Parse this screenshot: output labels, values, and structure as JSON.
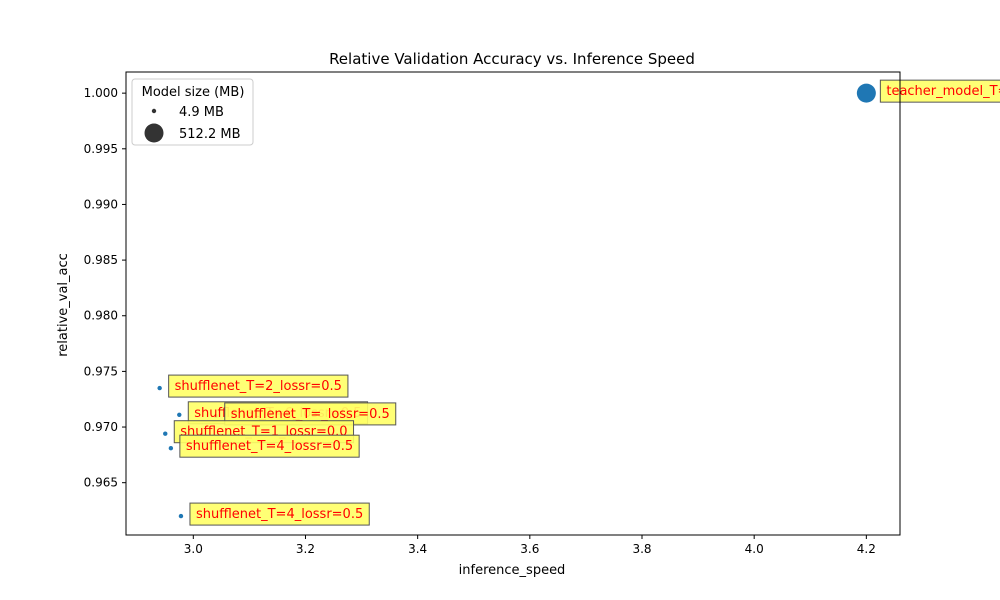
{
  "chart_data": {
    "type": "scatter",
    "title": "Relative Validation Accuracy vs. Inference Speed",
    "xlabel": "inference_speed",
    "ylabel": "relative_val_acc",
    "xlim": [
      2.88,
      4.26
    ],
    "ylim": [
      0.9603,
      1.0019
    ],
    "grid": false,
    "x_ticks": [
      "3.0",
      "3.2",
      "3.4",
      "3.6",
      "3.8",
      "4.0",
      "4.2"
    ],
    "y_ticks": [
      "0.965",
      "0.970",
      "0.975",
      "0.980",
      "0.985",
      "0.990",
      "0.995",
      "1.000"
    ],
    "point_color": "#1f77b4",
    "label_color": "#ff0000",
    "label_box_color": "#ffff66",
    "legend": {
      "title": "Model size (MB)",
      "placement": "upper-left",
      "entries": [
        {
          "label": "4.9 MB",
          "size_mb": 4.9
        },
        {
          "label": "512.2 MB",
          "size_mb": 512.2
        }
      ]
    },
    "points": [
      {
        "label": "teacher_model_T=",
        "x": 4.2,
        "y": 1.0,
        "size_mb": 512.2
      },
      {
        "label": "shufflenet_T=2_lossr=0.5",
        "x": 2.94,
        "y": 0.9735,
        "size_mb": 4.9
      },
      {
        "label": "shufflenet_T=6_lossr=0.5",
        "x": 2.975,
        "y": 0.9711,
        "size_mb": 4.9
      },
      {
        "label": "shufflenet_T=_lossr=0.5",
        "x": 3.04,
        "y": 0.971,
        "size_mb": 4.9
      },
      {
        "label": "shufflenet_T=1_lossr=0.0",
        "x": 2.95,
        "y": 0.9694,
        "size_mb": 4.9
      },
      {
        "label": "shufflenet_T=4_lossr=0.5",
        "x": 2.96,
        "y": 0.9681,
        "size_mb": 4.9
      },
      {
        "label": "shufflenet_T=4_lossr=0.5",
        "x": 2.978,
        "y": 0.962,
        "size_mb": 4.9
      }
    ]
  }
}
